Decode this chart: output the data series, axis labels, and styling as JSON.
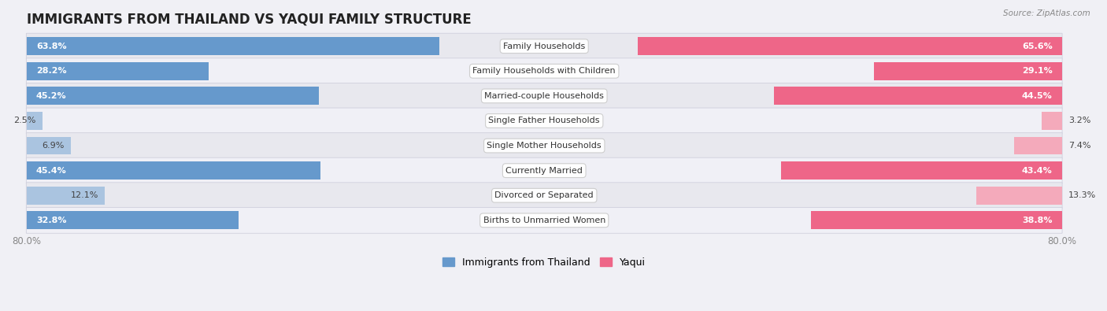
{
  "title": "IMMIGRANTS FROM THAILAND VS YAQUI FAMILY STRUCTURE",
  "source": "Source: ZipAtlas.com",
  "categories": [
    "Family Households",
    "Family Households with Children",
    "Married-couple Households",
    "Single Father Households",
    "Single Mother Households",
    "Currently Married",
    "Divorced or Separated",
    "Births to Unmarried Women"
  ],
  "thailand_values": [
    63.8,
    28.2,
    45.2,
    2.5,
    6.9,
    45.4,
    12.1,
    32.8
  ],
  "yaqui_values": [
    65.6,
    29.1,
    44.5,
    3.2,
    7.4,
    43.4,
    13.3,
    38.8
  ],
  "thailand_color_dark": "#6699cc",
  "yaqui_color_dark": "#ee6688",
  "thailand_color_light": "#aac4e0",
  "yaqui_color_light": "#f4aabb",
  "axis_max": 80,
  "bg_color": "#f0f0f5",
  "row_bg_even": "#e8e8ee",
  "row_bg_odd": "#f0f0f6",
  "legend_label_thailand": "Immigrants from Thailand",
  "legend_label_yaqui": "Yaqui",
  "title_fontsize": 12,
  "label_fontsize": 8,
  "bar_height": 0.72,
  "inner_label_threshold": 15
}
